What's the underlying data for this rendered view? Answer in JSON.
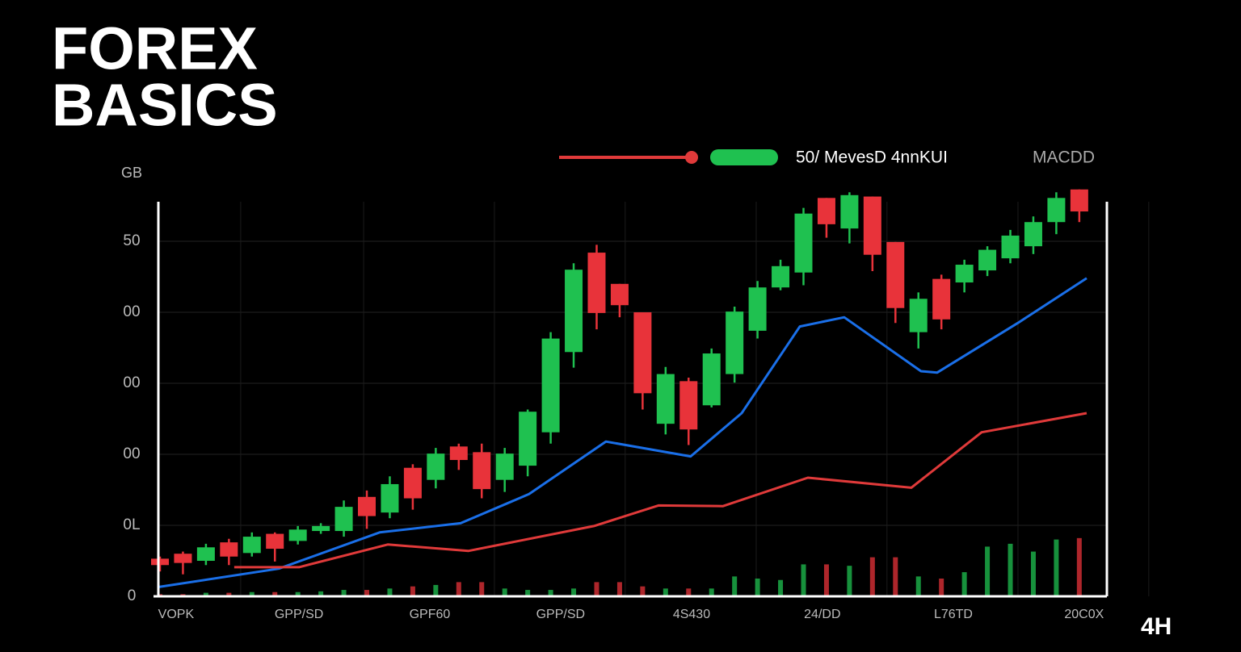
{
  "chart_data": {
    "type": "candlestick",
    "title_lines": [
      "FOREX",
      "BASICS"
    ],
    "ylabel": "GB",
    "legend_text": "50/ MevesD 4nnKUI",
    "indicator_label": "MACDD",
    "timeframe": "4H",
    "up_color": "#1fc150",
    "down_color": "#e8333a",
    "grid": true,
    "xlim": [
      -0.07,
      41.2
    ],
    "xticks": [
      {
        "value": 0.7,
        "label": "VOPK"
      },
      {
        "value": 6.05,
        "label": "GPP/SD"
      },
      {
        "value": 11.74,
        "label": "GPF60"
      },
      {
        "value": 17.43,
        "label": "GPP/SD"
      },
      {
        "value": 23.13,
        "label": "4S430"
      },
      {
        "value": 28.82,
        "label": "24/DD"
      },
      {
        "value": 34.52,
        "label": "L76TD"
      },
      {
        "value": 40.21,
        "label": "20C0X"
      }
    ],
    "ylim": [
      0,
      5.75
    ],
    "yticks": [
      0,
      {
        "value": 1,
        "label": "0L"
      },
      {
        "value": 2,
        "label": "00"
      },
      {
        "value": 3,
        "label": "00"
      },
      {
        "value": 4,
        "label": "00"
      },
      {
        "value": 5,
        "label": "50"
      }
    ],
    "open": [
      0.53,
      0.6,
      0.5,
      0.76,
      0.61,
      0.88,
      0.78,
      0.92,
      0.92,
      1.4,
      1.18,
      1.81,
      1.64,
      2.11,
      2.03,
      1.64,
      1.84,
      2.31,
      3.44,
      4.84,
      4.4,
      4.0,
      2.43,
      3.03,
      2.69,
      3.13,
      3.74,
      4.35,
      4.56,
      5.61,
      5.18,
      5.63,
      4.99,
      3.72,
      4.47,
      4.42,
      4.59,
      4.76,
      4.93,
      5.27,
      5.73
    ],
    "high": [
      0.56,
      0.63,
      0.74,
      0.81,
      0.9,
      0.9,
      0.99,
      1.03,
      1.35,
      1.49,
      1.69,
      1.86,
      2.09,
      2.15,
      2.15,
      2.09,
      2.63,
      3.72,
      4.69,
      4.95,
      4.4,
      4.0,
      3.23,
      3.08,
      3.49,
      4.08,
      4.44,
      4.74,
      5.47,
      5.61,
      5.69,
      5.63,
      4.99,
      4.28,
      4.53,
      4.74,
      4.93,
      5.16,
      5.35,
      5.69,
      5.73
    ],
    "low": [
      0.35,
      0.31,
      0.44,
      0.44,
      0.56,
      0.49,
      0.73,
      0.88,
      0.84,
      0.95,
      1.1,
      1.22,
      1.52,
      1.78,
      1.38,
      1.47,
      1.69,
      2.15,
      3.22,
      3.76,
      3.93,
      2.63,
      2.28,
      2.13,
      2.66,
      3.01,
      3.63,
      4.31,
      4.38,
      5.05,
      4.97,
      4.58,
      3.85,
      3.49,
      3.76,
      4.28,
      4.51,
      4.69,
      4.82,
      5.1,
      5.27
    ],
    "close": [
      0.44,
      0.47,
      0.69,
      0.56,
      0.84,
      0.67,
      0.94,
      0.99,
      1.26,
      1.13,
      1.58,
      1.38,
      2.01,
      1.92,
      1.51,
      2.01,
      2.6,
      3.63,
      4.6,
      3.99,
      4.1,
      2.86,
      3.13,
      2.35,
      3.42,
      4.01,
      4.35,
      4.65,
      5.39,
      5.24,
      5.65,
      4.81,
      4.06,
      4.19,
      3.9,
      4.67,
      4.88,
      5.08,
      5.27,
      5.61,
      5.42
    ],
    "volume": [
      0.03,
      0.03,
      0.05,
      0.05,
      0.06,
      0.06,
      0.06,
      0.07,
      0.09,
      0.09,
      0.11,
      0.14,
      0.16,
      0.2,
      0.2,
      0.11,
      0.09,
      0.09,
      0.11,
      0.2,
      0.2,
      0.14,
      0.11,
      0.11,
      0.11,
      0.28,
      0.25,
      0.23,
      0.45,
      0.45,
      0.43,
      0.55,
      0.55,
      0.28,
      0.25,
      0.34,
      0.7,
      0.74,
      0.63,
      0.8,
      0.82
    ],
    "lines": [
      {
        "color": "#1a6fe8",
        "x": [
          -0.1,
          5.17,
          9.56,
          13.08,
          16.06,
          19.4,
          23.09,
          25.31,
          27.84,
          29.77,
          33.11,
          33.81,
          37.33,
          40.32
        ],
        "values": [
          0.13,
          0.39,
          0.9,
          1.03,
          1.44,
          2.18,
          1.97,
          2.58,
          3.8,
          3.93,
          3.17,
          3.15,
          3.85,
          4.48
        ]
      },
      {
        "color": "#e03a3a",
        "x": [
          3.23,
          6.05,
          9.91,
          13.43,
          18.88,
          21.69,
          24.5,
          28.19,
          32.69,
          35.75,
          40.32
        ],
        "values": [
          0.41,
          0.41,
          0.73,
          0.64,
          0.99,
          1.28,
          1.27,
          1.67,
          1.53,
          2.31,
          2.58
        ]
      }
    ]
  }
}
